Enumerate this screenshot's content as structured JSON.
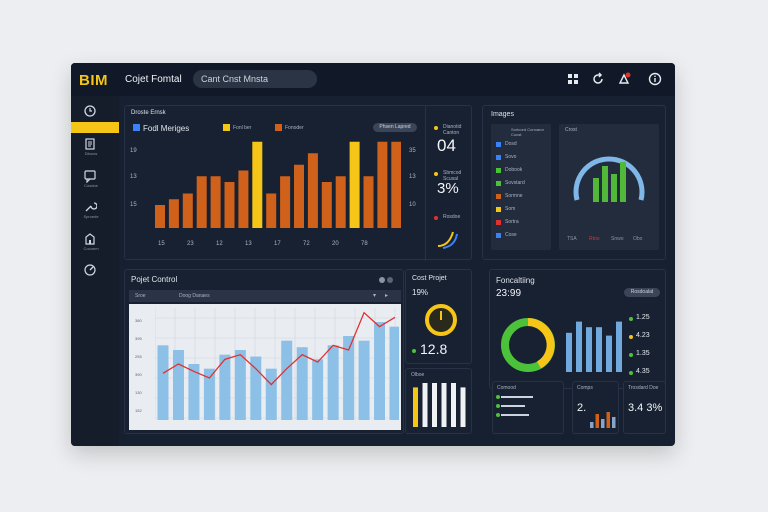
{
  "header": {
    "logo": "BIM",
    "app_title": "Cojet Fomtal",
    "search_value": "Cant Cnst Mnsta",
    "icons": [
      "grid-icon",
      "refresh-icon",
      "alert-icon",
      "info-icon"
    ]
  },
  "sidebar": {
    "items": [
      {
        "icon": "clock-icon",
        "label": ""
      },
      {
        "icon": "document-icon",
        "label": "Dboow"
      },
      {
        "icon": "chat-icon",
        "label": "Cosdoe"
      },
      {
        "icon": "wrench-icon",
        "label": "Sproede"
      },
      {
        "icon": "building-icon",
        "label": "Coooem"
      },
      {
        "icon": "gauge-icon",
        "label": ""
      }
    ]
  },
  "main_chart": {
    "title": "Droste Ernsk",
    "legend": [
      "Fodl Meriges",
      "Fonl ber",
      "Fonoder"
    ],
    "pill": "Phsen Lapred",
    "left_ticks": [
      "19",
      "13",
      "15"
    ],
    "right_ticks": [
      "35",
      "13",
      "10"
    ],
    "x_labels": [
      "15",
      "23",
      "12",
      "13",
      "17",
      "72",
      "20",
      "78"
    ],
    "stats": [
      {
        "caption": "Dianotid Canton",
        "value": "04",
        "color": "#f5c518"
      },
      {
        "caption": "Sbmcod Scusal",
        "value": "3%",
        "color": "#f5c518"
      },
      {
        "caption": "Rosdoe",
        "value": "",
        "color": "#e03030"
      }
    ]
  },
  "chart_data": [
    {
      "type": "bar",
      "title": "Fodl Meriges",
      "values": [
        4,
        5,
        6,
        9,
        9,
        8,
        10,
        15,
        6,
        9,
        11,
        13,
        8,
        9,
        15,
        9,
        15,
        15
      ],
      "highlight": [
        7,
        14
      ],
      "colors": {
        "base": "#d0611a",
        "highlight": "#f5c518"
      }
    },
    {
      "type": "area",
      "title": "Pojet Control",
      "y_labels": [
        "380",
        "395",
        "255",
        "390",
        "130",
        "152"
      ],
      "values": [
        8,
        7.5,
        6,
        5.5,
        7,
        7.5,
        6.8,
        5.5,
        8.5,
        7.8,
        6.5,
        8,
        9,
        8.5,
        10.5,
        10
      ],
      "line": [
        5,
        6,
        5.2,
        4.5,
        6.5,
        7,
        5.5,
        3.8,
        5.5,
        7,
        6.2,
        8,
        7.5,
        11.5,
        10,
        11
      ]
    },
    {
      "type": "bar",
      "title": "Fonaltking",
      "values": [
        7,
        9,
        8,
        8,
        6.5,
        9
      ]
    }
  ],
  "images_panel": {
    "title": "Images",
    "list_header": "Sortcord Conoaror Coost",
    "items": [
      "Dosd",
      "Sovo",
      "Dobook",
      "Sovstard",
      "Sormne",
      "Som",
      "Sortra",
      "Cose"
    ],
    "gauge_title": "Crost",
    "gauge_legend": [
      "TSA",
      "Rtoo",
      "Snwo",
      "Obo"
    ],
    "gauge_bars": [
      6,
      9,
      7,
      10
    ]
  },
  "project_control": {
    "title": "Pojet Control",
    "tabs": [
      "Sroe",
      "Doog Danaes"
    ]
  },
  "cost_project": {
    "title": "Cost Projet",
    "value1": "19%",
    "value2": "12.8",
    "sub_title": "Olboe",
    "bars": [
      9,
      10,
      10,
      10,
      10,
      9
    ]
  },
  "forecasting": {
    "title": "Foncaltiing",
    "value": "23:99",
    "pill": "Rosdoalat",
    "legend": [
      {
        "value": "1.25",
        "color": "#4cc23a"
      },
      {
        "value": "4.23",
        "color": "#f5c518"
      },
      {
        "value": "1.35",
        "color": "#4cc23a"
      },
      {
        "value": "4.35",
        "color": "#4cc23a"
      }
    ],
    "cards": [
      {
        "title": "Comood",
        "value": ""
      },
      {
        "title": "Comps",
        "value": "2."
      },
      {
        "title": "Trosdard Doe",
        "value": "3.4 3%"
      }
    ]
  }
}
